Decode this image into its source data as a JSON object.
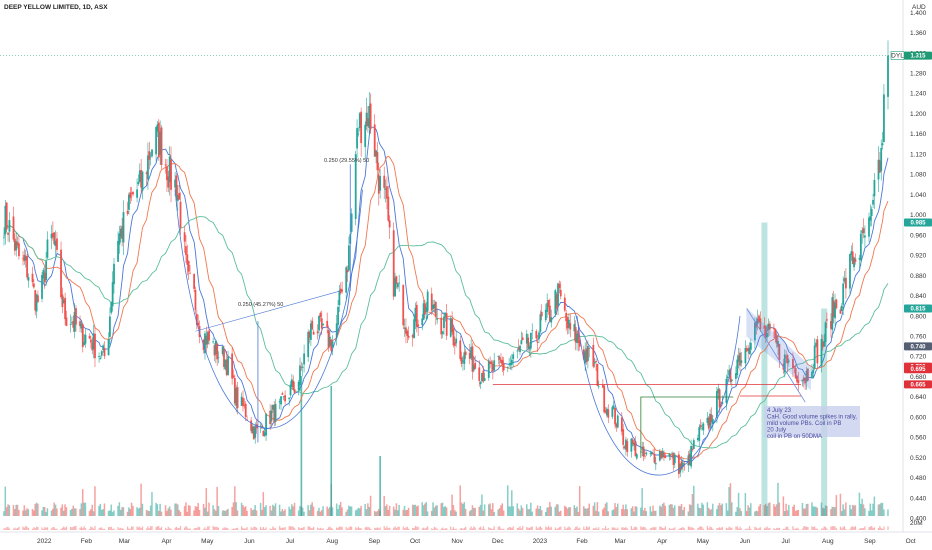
{
  "header": {
    "symbol_title": "DEEP YELLOW LIMITED, 1D, ASX"
  },
  "currency_label": "AUD",
  "colors": {
    "up": "#26a69a",
    "down": "#ef5350",
    "ma_fast": "#4a78d8",
    "ma_mid": "#f07850",
    "ma_slow": "#5cbf9a",
    "volume_up": "#26a69a",
    "volume_down": "#ef5350",
    "support_line": "#e0303a",
    "wedge": "#6a8ce0",
    "note_bg": "#c8d0ec"
  },
  "price_tags": [
    {
      "label": "DYL",
      "value": "1.315",
      "color": "#1f9a74"
    },
    {
      "value": "0.985",
      "color": "#26a69a"
    },
    {
      "value": "0.815",
      "color": "#26a69a"
    },
    {
      "value": "0.740",
      "color": "#555f74"
    },
    {
      "value": "0.700",
      "color": "#e0303a"
    },
    {
      "value": "0.695",
      "color": "#e0303a"
    },
    {
      "value": "0.665",
      "color": "#e0303a"
    }
  ],
  "annotations": {
    "measure_1": "0.250 (45.27%) 50",
    "measure_2": "0.250 (29.55%) 50",
    "note_lines": [
      "4 July 23",
      "CaH. Good volume spikes in rally,",
      "mild volume PBs. Coil in PB",
      "20 July",
      "coil in PB on 50DMA"
    ]
  },
  "volume_label": "20M",
  "chart_data": {
    "type": "candlestick",
    "title": "DEEP YELLOW LIMITED, 1D, ASX",
    "unit": "AUD",
    "y_ticks": [
      1.4,
      1.36,
      1.32,
      1.28,
      1.24,
      1.2,
      1.16,
      1.12,
      1.08,
      1.04,
      1.0,
      0.96,
      0.92,
      0.88,
      0.84,
      0.8,
      0.76,
      0.72,
      0.68,
      0.64,
      0.6,
      0.56,
      0.52,
      0.48,
      0.44,
      0.4
    ],
    "y_tick_labels": [
      "1.400",
      "1.360",
      "1.320",
      "1.280",
      "1.240",
      "1.200",
      "1.160",
      "1.120",
      "1.080",
      "1.040",
      "1.000",
      "0.960",
      "0.920",
      "0.880",
      "0.840",
      "0.800",
      "0.760",
      "0.720",
      "0.680",
      "0.640",
      "0.600",
      "0.560",
      "0.520",
      "0.480",
      "0.440",
      "0.400"
    ],
    "ylim": [
      0.385,
      1.415
    ],
    "x_axis_labels": [
      "2022",
      "Feb",
      "Mar",
      "Apr",
      "May",
      "Jun",
      "Jul",
      "Aug",
      "Sep",
      "Oct",
      "Nov",
      "Dec",
      "2023",
      "Feb",
      "Mar",
      "Apr",
      "May",
      "Jun",
      "Jul",
      "Aug",
      "Sep",
      "Oct"
    ],
    "price_path": [
      {
        "date": "2021-12-20",
        "close": 0.99
      },
      {
        "date": "2022-01-04",
        "close": 0.9
      },
      {
        "date": "2022-01-14",
        "close": 0.83
      },
      {
        "date": "2022-01-24",
        "close": 0.95
      },
      {
        "date": "2022-02-04",
        "close": 0.8
      },
      {
        "date": "2022-02-18",
        "close": 0.76
      },
      {
        "date": "2022-03-04",
        "close": 0.72
      },
      {
        "date": "2022-03-14",
        "close": 0.96
      },
      {
        "date": "2022-03-28",
        "close": 1.05
      },
      {
        "date": "2022-04-11",
        "close": 1.15
      },
      {
        "date": "2022-04-25",
        "close": 1.06
      },
      {
        "date": "2022-05-06",
        "close": 0.86
      },
      {
        "date": "2022-05-16",
        "close": 0.76
      },
      {
        "date": "2022-05-30",
        "close": 0.72
      },
      {
        "date": "2022-06-13",
        "close": 0.62
      },
      {
        "date": "2022-06-24",
        "close": 0.57
      },
      {
        "date": "2022-07-08",
        "close": 0.61
      },
      {
        "date": "2022-07-22",
        "close": 0.66
      },
      {
        "date": "2022-08-05",
        "close": 0.78
      },
      {
        "date": "2022-08-19",
        "close": 0.75
      },
      {
        "date": "2022-08-29",
        "close": 0.9
      },
      {
        "date": "2022-09-08",
        "close": 1.18
      },
      {
        "date": "2022-09-14",
        "close": 1.2
      },
      {
        "date": "2022-09-26",
        "close": 1.03
      },
      {
        "date": "2022-10-04",
        "close": 0.86
      },
      {
        "date": "2022-10-14",
        "close": 0.78
      },
      {
        "date": "2022-10-28",
        "close": 0.82
      },
      {
        "date": "2022-11-11",
        "close": 0.78
      },
      {
        "date": "2022-11-25",
        "close": 0.72
      },
      {
        "date": "2022-12-09",
        "close": 0.69
      },
      {
        "date": "2022-12-23",
        "close": 0.7
      },
      {
        "date": "2023-01-10",
        "close": 0.74
      },
      {
        "date": "2023-01-24",
        "close": 0.8
      },
      {
        "date": "2023-02-01",
        "close": 0.84
      },
      {
        "date": "2023-02-10",
        "close": 0.77
      },
      {
        "date": "2023-02-24",
        "close": 0.72
      },
      {
        "date": "2023-03-10",
        "close": 0.62
      },
      {
        "date": "2023-03-24",
        "close": 0.55
      },
      {
        "date": "2023-04-06",
        "close": 0.52
      },
      {
        "date": "2023-04-20",
        "close": 0.53
      },
      {
        "date": "2023-05-04",
        "close": 0.5
      },
      {
        "date": "2023-05-18",
        "close": 0.57
      },
      {
        "date": "2023-06-01",
        "close": 0.64
      },
      {
        "date": "2023-06-15",
        "close": 0.72
      },
      {
        "date": "2023-06-26",
        "close": 0.78
      },
      {
        "date": "2023-07-06",
        "close": 0.76
      },
      {
        "date": "2023-07-20",
        "close": 0.71
      },
      {
        "date": "2023-08-01",
        "close": 0.68
      },
      {
        "date": "2023-08-11",
        "close": 0.73
      },
      {
        "date": "2023-08-25",
        "close": 0.82
      },
      {
        "date": "2023-09-08",
        "close": 0.92
      },
      {
        "date": "2023-09-18",
        "close": 0.97
      },
      {
        "date": "2023-09-26",
        "close": 1.1
      },
      {
        "date": "2023-10-02",
        "close": 1.315
      }
    ],
    "horizontal_levels": [
      {
        "name": "support",
        "value": 0.665
      },
      {
        "name": "pivot",
        "value": 0.64
      }
    ],
    "last_price": 1.315,
    "legend": "none",
    "grid": false
  }
}
